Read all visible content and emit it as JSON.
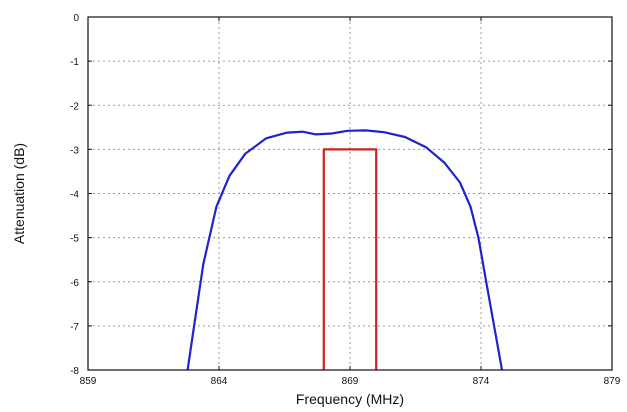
{
  "chart_data": {
    "type": "line",
    "title": "",
    "xlabel": "Frequency (MHz)",
    "ylabel": "Attenuation (dB)",
    "xlim": [
      859,
      879
    ],
    "ylim": [
      -8,
      0
    ],
    "x_ticks": [
      859,
      864,
      869,
      874,
      879
    ],
    "y_ticks": [
      0,
      -1,
      -2,
      -3,
      -4,
      -5,
      -6,
      -7,
      -8
    ],
    "grid": true,
    "legend": "none",
    "series": [
      {
        "color": "#2222cc",
        "x": [
          862.8,
          863.0,
          863.4,
          863.9,
          864.4,
          865.0,
          865.8,
          866.6,
          867.2,
          867.7,
          868.3,
          868.9,
          869.6,
          870.3,
          871.1,
          871.9,
          872.6,
          873.2,
          873.6,
          873.9,
          874.2,
          874.5,
          874.8
        ],
        "y": [
          -8.0,
          -7.2,
          -5.6,
          -4.3,
          -3.6,
          -3.1,
          -2.75,
          -2.62,
          -2.6,
          -2.66,
          -2.64,
          -2.58,
          -2.57,
          -2.61,
          -2.72,
          -2.95,
          -3.3,
          -3.75,
          -4.3,
          -5.0,
          -6.0,
          -7.0,
          -8.0
        ]
      },
      {
        "color": "#cc2222",
        "x": [
          868.0,
          868.0,
          870.0,
          870.0
        ],
        "y": [
          -8.0,
          -3.0,
          -3.0,
          -8.0
        ]
      }
    ]
  }
}
